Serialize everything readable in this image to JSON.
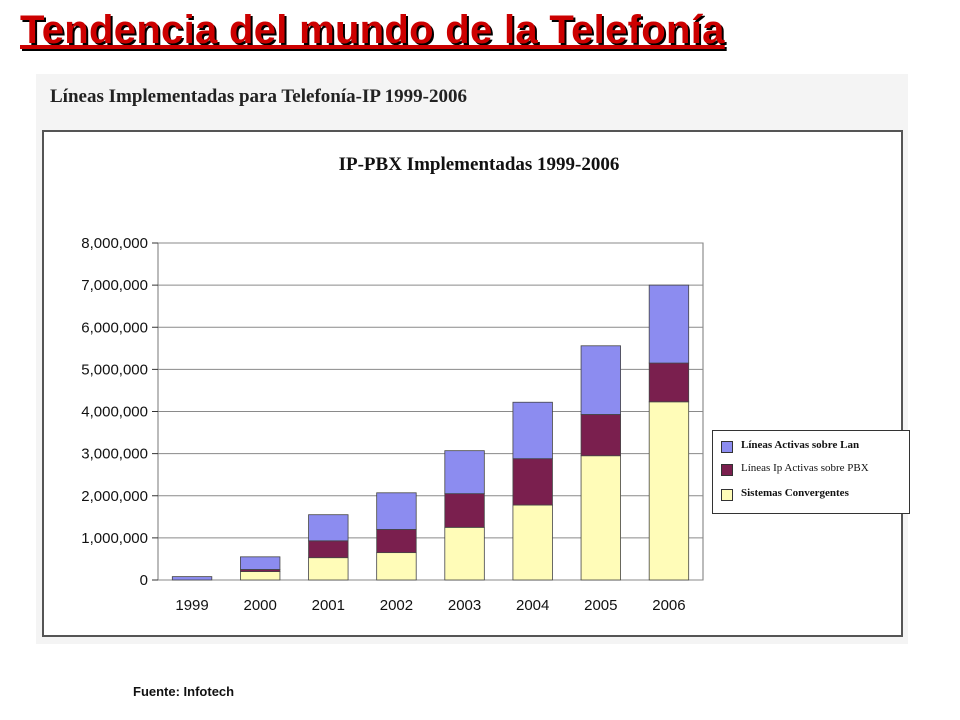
{
  "slide": {
    "title": "Tendencia del mundo de la Telefonía",
    "source": "Fuente: Infotech"
  },
  "figure": {
    "heading": "Líneas Implementadas para Telefonía-IP 1999-2006"
  },
  "colors": {
    "lan": "#8c8cf0",
    "pbx": "#7a1f4e",
    "convergent": "#fffcb8",
    "title_red": "#cc0000"
  },
  "chart_data": {
    "type": "bar",
    "stacked": true,
    "title": "IP-PBX Implementadas 1999-2006",
    "categories": [
      "1999",
      "2000",
      "2001",
      "2002",
      "2003",
      "2004",
      "2005",
      "2006"
    ],
    "series": [
      {
        "name": "Sistemas Convergentes",
        "color": "#fffcb8",
        "values": [
          0,
          200000,
          530000,
          650000,
          1250000,
          1780000,
          2950000,
          4230000
        ]
      },
      {
        "name": "Líneas Ip Activas sobre PBX",
        "color": "#7a1f4e",
        "values": [
          0,
          50000,
          400000,
          550000,
          800000,
          1100000,
          980000,
          920000
        ]
      },
      {
        "name": "Líneas Activas sobre Lan",
        "color": "#8c8cf0",
        "values": [
          80000,
          300000,
          620000,
          870000,
          1020000,
          1340000,
          1630000,
          1850000
        ]
      }
    ],
    "y_ticks": [
      "0",
      "1,000,000",
      "2,000,000",
      "3,000,000",
      "4,000,000",
      "5,000,000",
      "6,000,000",
      "7,000,000",
      "8,000,000"
    ],
    "ylim": [
      0,
      8000000
    ],
    "grid": true,
    "legend_position": "right",
    "legend": [
      "Líneas Activas sobre Lan",
      "Líneas Ip Activas sobre PBX",
      "Sistemas Convergentes"
    ]
  }
}
